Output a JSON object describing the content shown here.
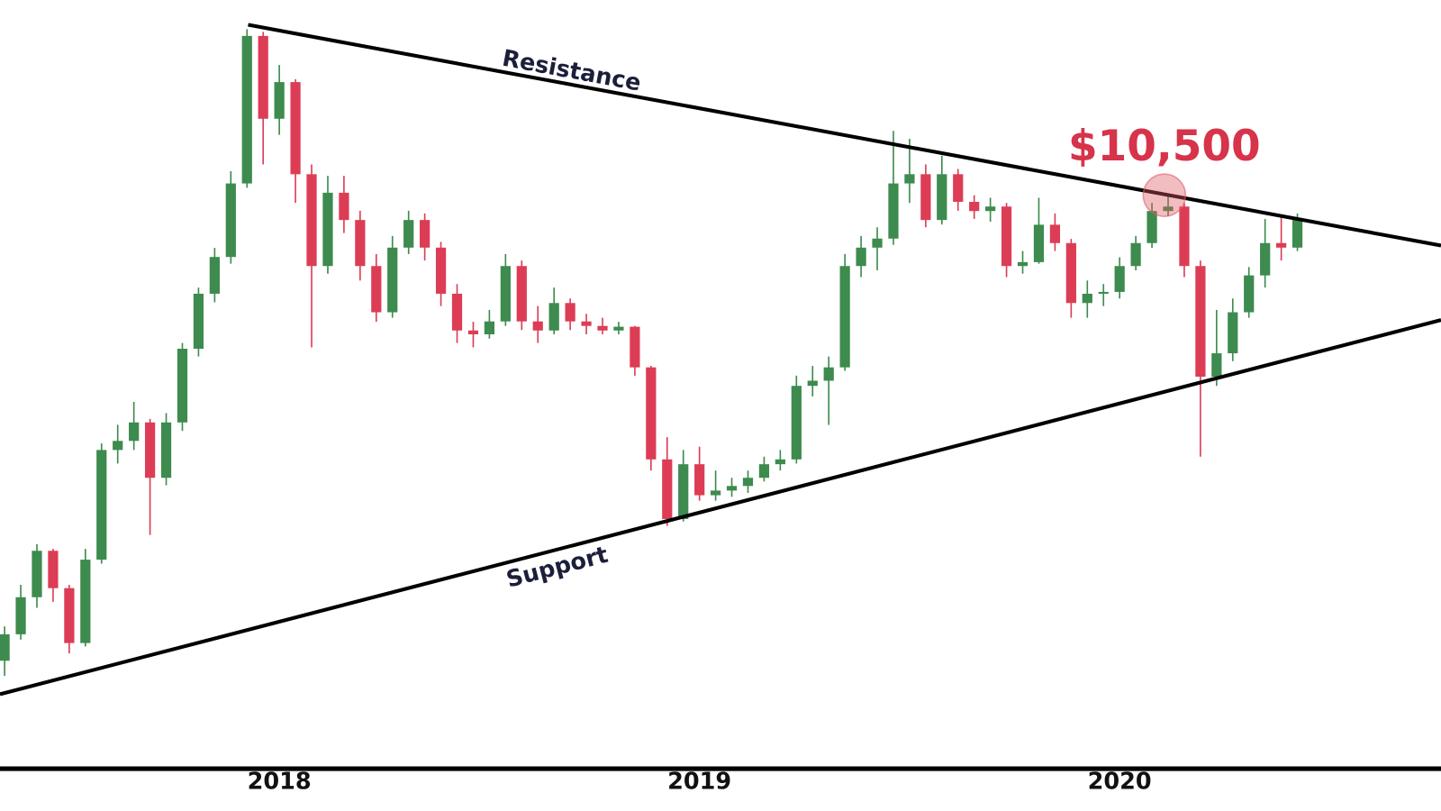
{
  "chart_data": {
    "type": "candlestick",
    "categories": [
      null,
      null,
      null,
      null,
      null,
      null,
      null,
      null,
      null,
      null,
      null,
      null,
      null,
      null,
      null,
      null,
      null,
      "2018",
      null,
      null,
      null,
      null,
      null,
      null,
      null,
      null,
      null,
      null,
      null,
      null,
      null,
      null,
      null,
      null,
      null,
      null,
      null,
      null,
      null,
      null,
      null,
      null,
      null,
      "2019",
      null,
      null,
      null,
      null,
      null,
      null,
      null,
      null,
      null,
      null,
      null,
      null,
      null,
      null,
      null,
      null,
      null,
      null,
      null,
      null,
      null,
      null,
      null,
      null,
      null,
      "2020",
      null,
      null,
      null,
      null,
      null,
      null,
      null,
      null,
      null,
      null,
      null,
      null,
      null,
      null,
      null,
      null,
      null,
      null,
      null,
      null
    ],
    "open": [
      1800,
      1990,
      2290,
      2730,
      2370,
      1925,
      2640,
      4000,
      4140,
      4440,
      3600,
      4440,
      5870,
      7230,
      8310,
      10980,
      19200,
      14030,
      16120,
      11370,
      8030,
      10600,
      9560,
      8030,
      6740,
      8610,
      9560,
      8610,
      7230,
      6290,
      6200,
      6510,
      8030,
      6510,
      6290,
      6980,
      6510,
      6400,
      6290,
      6380,
      5470,
      3860,
      3080,
      3790,
      3370,
      3430,
      3490,
      3600,
      3790,
      3860,
      5100,
      5200,
      5470,
      8030,
      8610,
      8910,
      10980,
      11370,
      9560,
      11370,
      10240,
      9890,
      10060,
      8030,
      8150,
      9390,
      8760,
      6980,
      7230,
      7280,
      8030,
      8760,
      9890,
      10060,
      8030,
      5280,
      5770,
      6740,
      7750,
      8760,
      8610,
      null,
      null,
      null,
      null,
      null,
      null,
      null,
      null,
      null
    ],
    "high": [
      2050,
      2400,
      2800,
      2750,
      2400,
      2750,
      4100,
      4400,
      4800,
      4500,
      4600,
      6000,
      7400,
      8600,
      11500,
      19700,
      19500,
      17200,
      16300,
      11800,
      11300,
      11300,
      9900,
      8400,
      9000,
      9900,
      9800,
      8800,
      7500,
      6500,
      6800,
      8400,
      8200,
      6900,
      7400,
      7100,
      6700,
      6600,
      6500,
      6400,
      5500,
      4200,
      4000,
      4050,
      3700,
      3600,
      3700,
      3900,
      4000,
      5300,
      5500,
      5700,
      8400,
      9000,
      9300,
      13400,
      13000,
      11800,
      12200,
      11600,
      10500,
      10400,
      10200,
      8500,
      10400,
      9800,
      8900,
      7600,
      7500,
      8300,
      9000,
      10200,
      10500,
      10200,
      8200,
      6800,
      7100,
      8000,
      9600,
      9700,
      9800,
      null,
      null,
      null,
      null,
      null,
      null,
      null,
      null,
      null
    ],
    "low": [
      1700,
      1950,
      2200,
      2250,
      1850,
      1900,
      2600,
      3800,
      4000,
      2900,
      3500,
      4300,
      5700,
      7000,
      8100,
      10800,
      11800,
      13200,
      10200,
      5900,
      7800,
      9100,
      7600,
      6500,
      6600,
      8400,
      8200,
      6900,
      6000,
      5900,
      6100,
      6400,
      6300,
      6000,
      6200,
      6300,
      6200,
      6200,
      6200,
      5300,
      3700,
      3000,
      3050,
      3300,
      3300,
      3350,
      3400,
      3550,
      3700,
      3800,
      4900,
      4400,
      5400,
      7700,
      7900,
      8700,
      10200,
      9300,
      9400,
      9900,
      9600,
      9500,
      7700,
      7800,
      8100,
      8500,
      6600,
      6600,
      6900,
      7100,
      7900,
      8600,
      9700,
      7700,
      3900,
      5100,
      5600,
      6600,
      7400,
      8200,
      8500,
      null,
      null,
      null,
      null,
      null,
      null,
      null,
      null,
      null
    ],
    "close": [
      1990,
      2290,
      2730,
      2370,
      1925,
      2640,
      4000,
      4140,
      4440,
      3600,
      4440,
      5870,
      7230,
      8310,
      10980,
      19200,
      14030,
      16120,
      11370,
      8030,
      10600,
      9560,
      8030,
      6740,
      8610,
      9560,
      8610,
      7230,
      6290,
      6200,
      6510,
      8030,
      6510,
      6290,
      6980,
      6510,
      6400,
      6290,
      6380,
      5470,
      3860,
      3080,
      3790,
      3370,
      3430,
      3490,
      3600,
      3790,
      3860,
      5100,
      5200,
      5470,
      8030,
      8610,
      8910,
      10980,
      11370,
      9560,
      11370,
      10240,
      9890,
      10060,
      8030,
      8150,
      9390,
      8760,
      6980,
      7230,
      7280,
      8030,
      8760,
      9890,
      10060,
      8030,
      5280,
      5770,
      6740,
      7750,
      8760,
      8610,
      9560,
      null,
      null,
      null,
      null,
      null,
      null,
      null,
      null,
      null
    ],
    "up_color": "#3d8b4e",
    "down_color": "#dc3d55",
    "ylim": [
      1200,
      22000
    ],
    "log_scale": true,
    "line_labels": [
      "Resistance",
      "Support"
    ],
    "annotation": {
      "label": "$10,500",
      "value": 10500
    }
  }
}
